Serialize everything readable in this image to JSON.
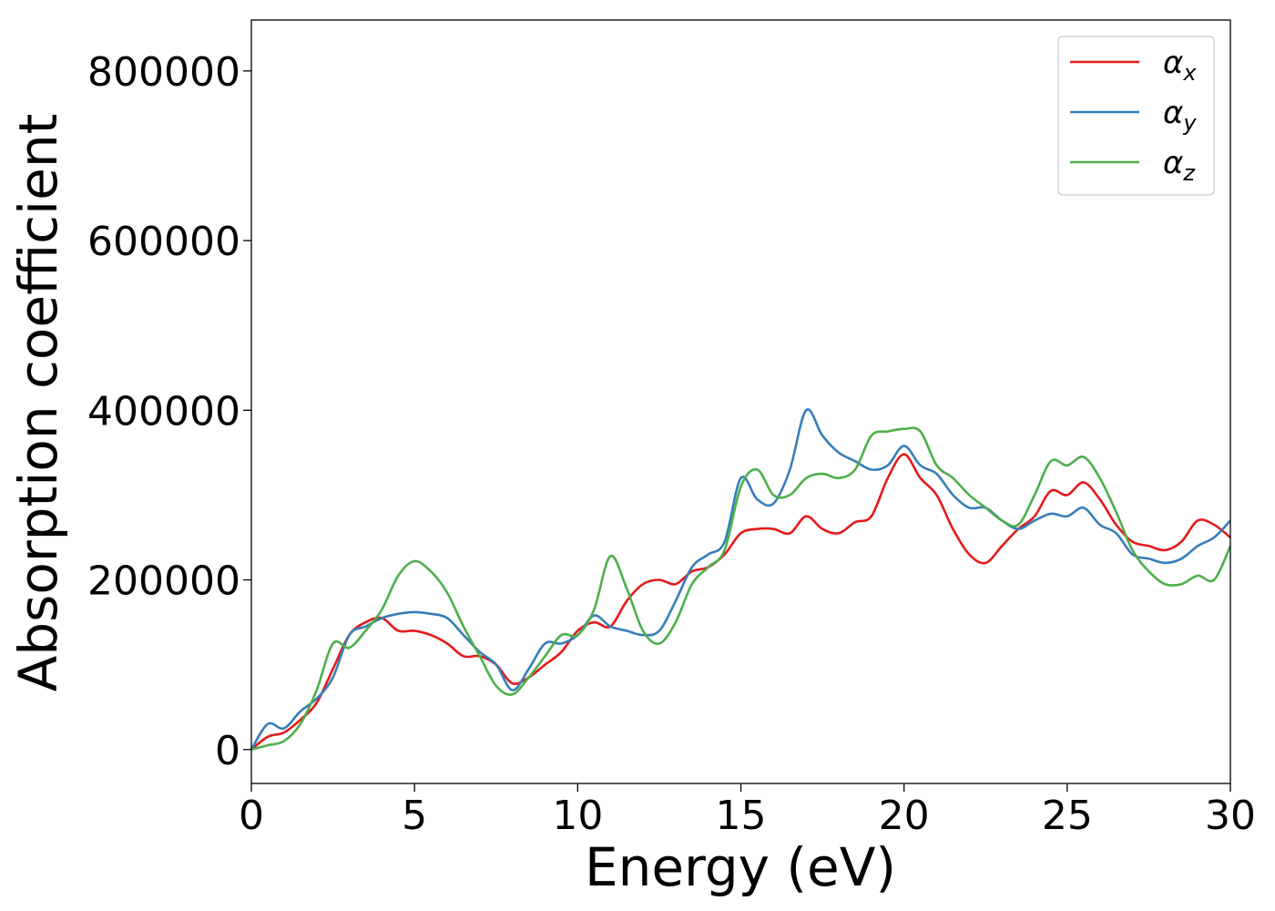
{
  "chart_data": {
    "type": "line",
    "xlabel": "Energy (eV)",
    "ylabel": "Absorption coefficient",
    "xlim": [
      0,
      30
    ],
    "ylim": [
      -40000,
      860000
    ],
    "xticks": [
      0,
      5,
      10,
      15,
      20,
      25,
      30
    ],
    "yticks": [
      0,
      200000,
      400000,
      600000,
      800000
    ],
    "grid": false,
    "legend_position": "top-right",
    "x": [
      0,
      0.5,
      1,
      1.5,
      2,
      2.5,
      3,
      3.5,
      4,
      4.5,
      5,
      5.5,
      6,
      6.5,
      7,
      7.5,
      8,
      8.5,
      9,
      9.5,
      10,
      10.5,
      11,
      11.5,
      12,
      12.5,
      13,
      13.5,
      14,
      14.5,
      15,
      15.5,
      16,
      16.5,
      17,
      17.5,
      18,
      18.5,
      19,
      19.5,
      20,
      20.5,
      21,
      21.5,
      22,
      22.5,
      23,
      23.5,
      24,
      24.5,
      25,
      25.5,
      26,
      26.5,
      27,
      27.5,
      28,
      28.5,
      29,
      29.5,
      30
    ],
    "series": [
      {
        "name": "α",
        "subscript": "x",
        "color": "#e41a1c",
        "values": [
          0,
          15000,
          20000,
          35000,
          55000,
          95000,
          135000,
          150000,
          155000,
          140000,
          140000,
          135000,
          125000,
          110000,
          110000,
          100000,
          78000,
          85000,
          100000,
          115000,
          140000,
          150000,
          145000,
          175000,
          195000,
          200000,
          195000,
          210000,
          215000,
          230000,
          255000,
          260000,
          260000,
          255000,
          275000,
          260000,
          255000,
          268000,
          275000,
          320000,
          348000,
          320000,
          300000,
          260000,
          230000,
          220000,
          240000,
          260000,
          275000,
          305000,
          300000,
          315000,
          295000,
          265000,
          245000,
          240000,
          235000,
          245000,
          270000,
          265000,
          250000
        ]
      },
      {
        "name": "α",
        "subscript": "y",
        "color": "#377eb8",
        "values": [
          0,
          30000,
          25000,
          45000,
          60000,
          85000,
          135000,
          145000,
          155000,
          160000,
          162000,
          160000,
          155000,
          135000,
          115000,
          100000,
          70000,
          95000,
          125000,
          125000,
          135000,
          158000,
          145000,
          140000,
          135000,
          140000,
          175000,
          215000,
          230000,
          245000,
          320000,
          295000,
          290000,
          330000,
          400000,
          370000,
          350000,
          340000,
          330000,
          335000,
          358000,
          335000,
          325000,
          300000,
          285000,
          285000,
          270000,
          260000,
          270000,
          278000,
          275000,
          285000,
          265000,
          255000,
          230000,
          225000,
          220000,
          225000,
          240000,
          250000,
          270000
        ]
      },
      {
        "name": "α",
        "subscript": "z",
        "color": "#4daf4a",
        "values": [
          0,
          5000,
          10000,
          30000,
          70000,
          125000,
          120000,
          140000,
          165000,
          205000,
          222000,
          210000,
          185000,
          145000,
          110000,
          75000,
          65000,
          85000,
          110000,
          135000,
          135000,
          165000,
          228000,
          190000,
          140000,
          125000,
          150000,
          195000,
          215000,
          235000,
          310000,
          330000,
          300000,
          300000,
          320000,
          325000,
          320000,
          330000,
          370000,
          375000,
          378000,
          375000,
          335000,
          320000,
          300000,
          285000,
          270000,
          265000,
          300000,
          340000,
          335000,
          345000,
          320000,
          280000,
          235000,
          210000,
          195000,
          195000,
          205000,
          200000,
          240000
        ]
      }
    ]
  }
}
